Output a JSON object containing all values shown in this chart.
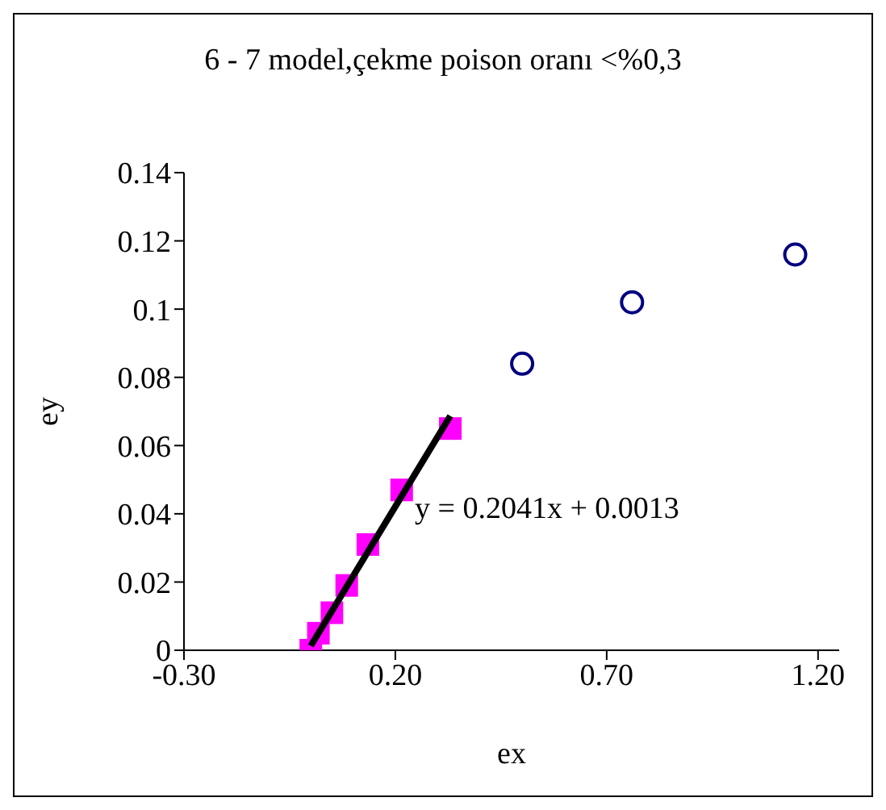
{
  "chart_data": {
    "type": "scatter",
    "title": "6 - 7 model,çekme poison oranı <%0,3",
    "xlabel": "ex",
    "ylabel": "ey",
    "xlim": [
      -0.3,
      1.25
    ],
    "xticks": [
      {
        "value": -0.3,
        "label": "-0.30"
      },
      {
        "value": 0.2,
        "label": "0.20"
      },
      {
        "value": 0.7,
        "label": "0.70"
      },
      {
        "value": 1.2,
        "label": "1.20"
      }
    ],
    "ylim": [
      0,
      0.14
    ],
    "yticks": [
      0,
      0.02,
      0.04,
      0.06,
      0.08,
      0.1,
      0.12,
      0.14
    ],
    "grid": false,
    "series": [
      {
        "marker": "square",
        "color": "#ff00ff",
        "x": [
          0,
          0.018,
          0.05,
          0.085,
          0.135,
          0.215,
          0.33
        ],
        "values": [
          0,
          0.005,
          0.011,
          0.019,
          0.031,
          0.047,
          0.065
        ]
      },
      {
        "marker": "circle",
        "color": "#000080",
        "x": [
          0.5,
          0.76,
          1.146
        ],
        "values": [
          0.084,
          0.102,
          0.116
        ]
      },
      {
        "type": "line",
        "marker": "none",
        "color": "#000000",
        "x": [
          0,
          0.33
        ],
        "values": [
          0.0013,
          0.0687
        ]
      }
    ],
    "annotations": [
      "y = 0.2041x + 0.0013"
    ]
  }
}
